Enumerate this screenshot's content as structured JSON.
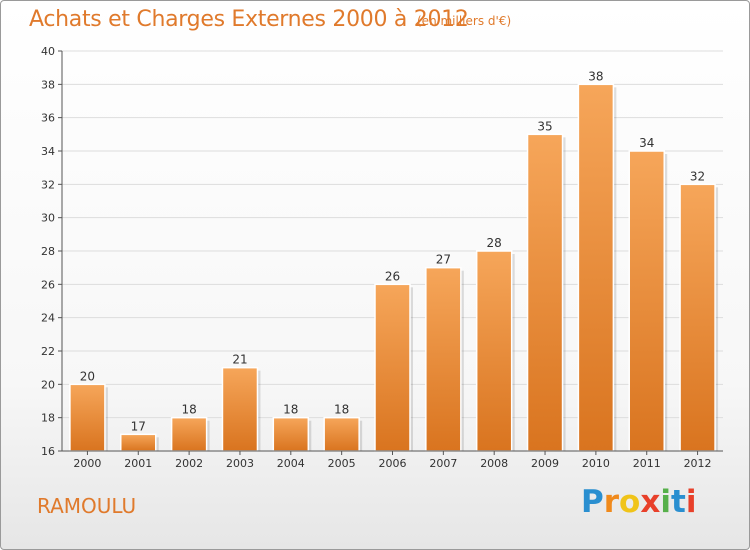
{
  "title": "Achats et Charges Externes 2000 à 2012",
  "subtitle": "(en milliers d'€)",
  "commune": "RAMOULU",
  "logo": {
    "letters": [
      "P",
      "r",
      "o",
      "x",
      "i",
      "t",
      "i"
    ],
    "colors": [
      "#2a8fd0",
      "#f08a1c",
      "#f0c419",
      "#e8402a",
      "#56b04a",
      "#2a8fd0",
      "#e8402a"
    ]
  },
  "colors": {
    "accent": "#e07a2c",
    "bar_top": "#f6a65a",
    "bar_bottom": "#d9741f",
    "grid": "#dddddd",
    "axis": "#555555"
  },
  "chart_data": {
    "type": "bar",
    "categories": [
      "2000",
      "2001",
      "2002",
      "2003",
      "2004",
      "2005",
      "2006",
      "2007",
      "2008",
      "2009",
      "2010",
      "2011",
      "2012"
    ],
    "values": [
      20,
      17,
      18,
      21,
      18,
      18,
      26,
      27,
      28,
      35,
      38,
      34,
      32
    ],
    "ylim": [
      16,
      40
    ],
    "yticks": [
      16,
      18,
      20,
      22,
      24,
      26,
      28,
      30,
      32,
      34,
      36,
      38,
      40
    ],
    "grid": true,
    "title": "Achats et Charges Externes 2000 à 2012",
    "xlabel": "",
    "ylabel": ""
  }
}
